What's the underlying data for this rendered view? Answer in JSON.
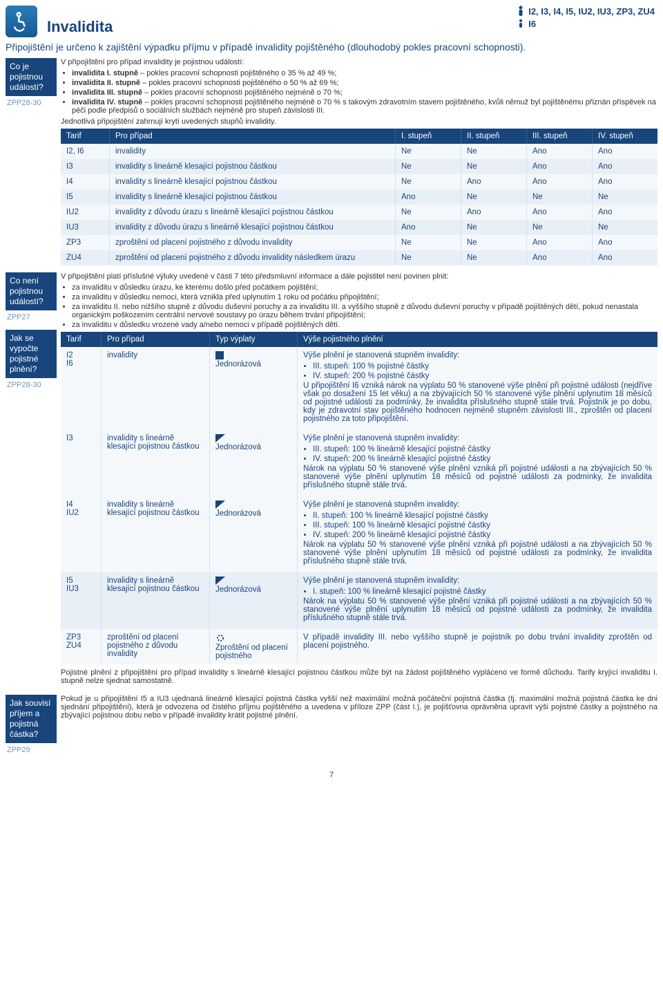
{
  "header": {
    "title": "Invalidita",
    "top_tags": "I2, I3, I4, I5, IU2, IU3, ZP3, ZU4",
    "lower_tag": "I6",
    "subtitle": "Připojištění je určeno k zajištění výpadku příjmu v případě invalidity pojištěného (dlouhodobý pokles pracovní schopnosti)."
  },
  "colors": {
    "brand": "#17457c",
    "header_bg": "#17457c",
    "row_light": "#f5f8fb",
    "row_dark": "#e8eff7"
  },
  "side": {
    "box1": "Co je pojistnou událostí?",
    "zpp1": "ZPP28-30",
    "box2": "Co není pojistnou událostí?",
    "zpp2": "ZPP27",
    "box3": "Jak se vypočte pojistné plnění?",
    "zpp3": "ZPP28-30",
    "box4": "Jak souvisí příjem a pojistná částka?",
    "zpp4": "ZPP29"
  },
  "intro": {
    "lead": "V připojištění pro případ invalidity je pojistnou událostí:",
    "b1_lbl": "invalidita I. stupně",
    "b1_txt": " – pokles pracovní schopnosti pojištěného o 35 % až 49 %;",
    "b2_lbl": "invalidita II. stupně",
    "b2_txt": " – pokles pracovní schopnosti pojištěného o 50 % až 69 %;",
    "b3_lbl": "invalidita III. stupně",
    "b3_txt": " – pokles pracovní schopnosti pojištěného nejméně o 70 %;",
    "b4_lbl": "invalidita IV. stupně",
    "b4_txt": " – pokles pracovní schopnosti pojištěného nejméně o 70 % s takovým zdravotním stavem pojištěného, kvůli němuž byl pojištěnému přiznán příspěvek na péči podle předpisů o sociálních službách nejméně pro stupeň závislosti III.",
    "closing": "Jednotlivá připojištění zahrnují krytí uvedených stupňů invalidity."
  },
  "table1": {
    "headers": [
      "Tarif",
      "Pro případ",
      "I. stupeň",
      "II. stupeň",
      "III. stupeň",
      "IV. stupeň"
    ],
    "rows": [
      [
        "I2, I6",
        "invalidity",
        "Ne",
        "Ne",
        "Ano",
        "Ano"
      ],
      [
        "I3",
        "invalidity s lineárně klesající pojistnou částkou",
        "Ne",
        "Ne",
        "Ano",
        "Ano"
      ],
      [
        "I4",
        "invalidity s lineárně klesající pojistnou částkou",
        "Ne",
        "Ano",
        "Ano",
        "Ano"
      ],
      [
        "I5",
        "invalidity s lineárně klesající pojistnou částkou",
        "Ano",
        "Ne",
        "Ne",
        "Ne"
      ],
      [
        "IU2",
        "invalidity z důvodu úrazu s lineárně klesající pojistnou částkou",
        "Ne",
        "Ano",
        "Ano",
        "Ano"
      ],
      [
        "IU3",
        "invalidity z důvodu úrazu s lineárně klesající pojistnou částkou",
        "Ano",
        "Ne",
        "Ne",
        "Ne"
      ],
      [
        "ZP3",
        "zproštění od placení pojistného z důvodu invalidity",
        "Ne",
        "Ne",
        "Ano",
        "Ano"
      ],
      [
        "ZU4",
        "zproštění od placení pojistného z důvodu invalidity následkem úrazu",
        "Ne",
        "Ne",
        "Ano",
        "Ano"
      ]
    ]
  },
  "excl": {
    "lead": "V připojištění platí příslušné výluky uvedené v části 7 této předsmluvní informace a dále pojistitel není povinen plnit:",
    "b1": "za invaliditu v důsledku úrazu, ke kterému došlo před počátkem pojištění;",
    "b2": "za invaliditu v důsledku nemoci, která vznikla před uplynutím 1 roku od počátku připojištění;",
    "b3": "za invaliditu II. nebo nižšího stupně z důvodu duševní poruchy a za invaliditu III. a vyššího stupně z důvodu duševní poruchy v případě pojištěných dětí, pokud nenastala organickým poškozením centrální nervové soustavy po úrazu během trvání připojištění;",
    "b4": "za invaliditu v důsledku vrozené vady a/nebo nemoci v případě pojištěných dětí."
  },
  "table2": {
    "headers": [
      "Tarif",
      "Pro případ",
      "Typ výplaty",
      "Výše pojistného plnění"
    ],
    "r1": {
      "tarif1": "I2",
      "tarif2": "I6",
      "case": "invalidity",
      "type": "Jednorázová",
      "p1": "Výše plnění je stanovená stupněm invalidity:",
      "li1": "III. stupeň: 100 % pojistné částky",
      "li2": "IV. stupeň: 200 % pojistné částky",
      "p2": "U připojištění I6 vzniká nárok na výplatu 50 % stanovené výše plnění při pojistné události (nejdříve však po dosažení 15 let věku) a na zbývajících 50 % stanovené výše plnění uplynutím 18 měsíců od pojistné události za podmínky, že invalidita příslušného stupně stále trvá. Pojistník je po dobu, kdy je zdravotní stav pojištěného hodnocen nejméně stupněm závislosti III., zproštěn od placení pojistného za toto připojištění."
    },
    "r2": {
      "tarif": "I3",
      "case": "invalidity s lineárně klesající pojistnou částkou",
      "type": "Jednorázová",
      "p1": "Výše plnění je stanovená stupněm invalidity:",
      "li1": "III. stupeň: 100 % lineárně klesající pojistné částky",
      "li2": "IV. stupeň: 200 % lineárně klesající pojistné částky",
      "p2": "Nárok na výplatu 50 % stanovené výše plnění vzniká při pojistné události a na zbývajících 50 % stanovené výše plnění uplynutím 18 měsíců od pojistné události za podmínky, že invalidita příslušného stupně stále trvá."
    },
    "r3": {
      "tarif1": "I4",
      "tarif2": "IU2",
      "case": "invalidity s lineárně klesající pojistnou částkou",
      "type": "Jednorázová",
      "p1": "Výše plnění je stanovená stupněm invalidity:",
      "li1": "II. stupeň: 100 % lineárně klesající pojistné částky",
      "li2": "III. stupeň: 100 % lineárně klesající pojistné částky",
      "li3": "IV. stupeň: 200 % lineárně klesající pojistné částky",
      "p2": "Nárok na výplatu 50 % stanovené výše plnění vzniká při pojistné události a na zbývajících 50 % stanovené výše plnění uplynutím 18 měsíců od pojistné události za podmínky, že invalidita příslušného stupně stále trvá."
    },
    "r4": {
      "tarif1": "I5",
      "tarif2": "IU3",
      "case": "invalidity s lineárně klesající pojistnou částkou",
      "type": "Jednorázová",
      "p1": "Výše plnění je stanovená stupněm invalidity:",
      "li1": "I. stupeň: 100 % lineárně klesající pojistné částky",
      "p2": "Nárok na výplatu 50 % stanovené výše plnění vzniká při pojistné události a na zbývajících 50 % stanovené výše plnění uplynutím 18 měsíců od pojistné události za podmínky, že invalidita příslušného stupně stále trvá."
    },
    "r5": {
      "tarif1": "ZP3",
      "tarif2": "ZU4",
      "case": "zproštění od placení pojistného z důvodu invalidity",
      "type": "Zproštění od placení pojistného",
      "p1": "V případě invalidity III. nebo vyššího stupně je pojistník po dobu trvání invalidity zproštěn od placení pojistného."
    }
  },
  "foot1": "Pojistné plnění z připojištění pro případ invalidity s lineárně klesající pojistnou částkou může být na žádost pojištěného vypláceno ve formě důchodu. Tarify kryjící invaliditu I. stupně nelze sjednat samostatně.",
  "foot2": "Pokud je u připojištění I5 a IU3 ujednaná lineárně klesající pojistná částka vyšší než maximální možná počáteční pojistná částka (tj. maximální možná pojistná částka ke dni sjednání připojištění), která je odvozena od čistého příjmu pojištěného a uvedena v příloze ZPP (část I.), je pojišťovna oprávněna upravit výši pojistné částky a pojistného na zbývající pojistnou dobu nebo v případě invalidity krátit pojistné plnění.",
  "page": "7"
}
